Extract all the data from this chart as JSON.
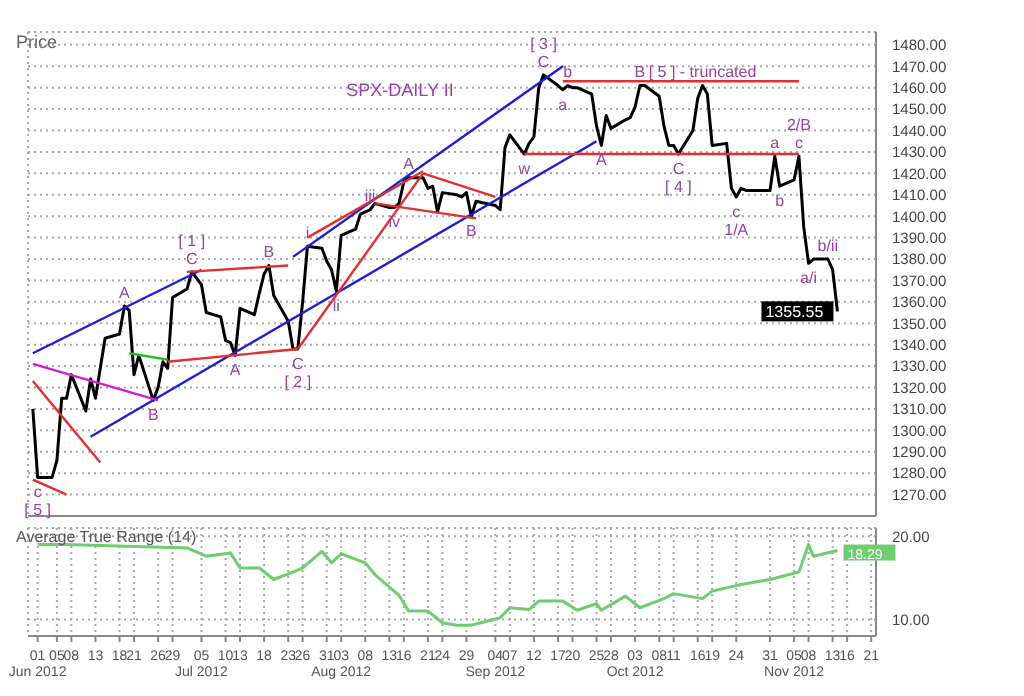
{
  "chart_data": [
    {
      "type": "line",
      "title": "SPX-DAILY II",
      "ylabel": "Price",
      "grid": true,
      "tick_labels": "y",
      "xlim": [
        "2012-05-30",
        "2012-11-22"
      ],
      "ylim": [
        1260,
        1486
      ],
      "xticks": [
        "2012-06-01",
        "2012-06-05",
        "2012-06-08",
        "2012-06-13",
        "2012-06-18",
        "2012-06-21",
        "2012-06-26",
        "2012-06-29",
        "2012-07-05",
        "2012-07-10",
        "2012-07-13",
        "2012-07-18",
        "2012-07-23",
        "2012-07-26",
        "2012-07-31",
        "2012-08-03",
        "2012-08-08",
        "2012-08-13",
        "2012-08-16",
        "2012-08-21",
        "2012-08-24",
        "2012-08-29",
        "2012-09-04",
        "2012-09-07",
        "2012-09-12",
        "2012-09-17",
        "2012-09-20",
        "2012-09-25",
        "2012-09-28",
        "2012-10-03",
        "2012-10-08",
        "2012-10-11",
        "2012-10-16",
        "2012-10-19",
        "2012-10-24",
        "2012-10-31",
        "2012-11-05",
        "2012-11-08",
        "2012-11-13",
        "2012-11-16",
        "2012-11-21"
      ],
      "yticks": [
        {
          "value": 1270,
          "label": "1270.00"
        },
        {
          "value": 1280,
          "label": "1280.00"
        },
        {
          "value": 1290,
          "label": "1290.00"
        },
        {
          "value": 1300,
          "label": "1300.00"
        },
        {
          "value": 1310,
          "label": "1310.00"
        },
        {
          "value": 1320,
          "label": "1320.00"
        },
        {
          "value": 1330,
          "label": "1330.00"
        },
        {
          "value": 1340,
          "label": "1340.00"
        },
        {
          "value": 1350,
          "label": "1350.00"
        },
        {
          "value": 1360,
          "label": "1360.00"
        },
        {
          "value": 1370,
          "label": "1370.00"
        },
        {
          "value": 1380,
          "label": "1380.00"
        },
        {
          "value": 1390,
          "label": "1390.00"
        },
        {
          "value": 1400,
          "label": "1400.00"
        },
        {
          "value": 1410,
          "label": "1410.00"
        },
        {
          "value": 1420,
          "label": "1420.00"
        },
        {
          "value": 1430,
          "label": "1430.00"
        },
        {
          "value": 1440,
          "label": "1440.00"
        },
        {
          "value": 1450,
          "label": "1450.00"
        },
        {
          "value": 1460,
          "label": "1460.00"
        },
        {
          "value": 1470,
          "label": "1470.00"
        },
        {
          "value": 1480,
          "label": "1480.00"
        }
      ],
      "series": [
        {
          "color": "#000000",
          "x": [
            "2012-05-31",
            "2012-06-01",
            "2012-06-04",
            "2012-06-05",
            "2012-06-06",
            "2012-06-07",
            "2012-06-08",
            "2012-06-11",
            "2012-06-12",
            "2012-06-13",
            "2012-06-14",
            "2012-06-15",
            "2012-06-18",
            "2012-06-19",
            "2012-06-20",
            "2012-06-21",
            "2012-06-22",
            "2012-06-25",
            "2012-06-26",
            "2012-06-27",
            "2012-06-28",
            "2012-06-29",
            "2012-07-02",
            "2012-07-03",
            "2012-07-05",
            "2012-07-06",
            "2012-07-09",
            "2012-07-10",
            "2012-07-11",
            "2012-07-12",
            "2012-07-13",
            "2012-07-16",
            "2012-07-17",
            "2012-07-18",
            "2012-07-19",
            "2012-07-20",
            "2012-07-23",
            "2012-07-24",
            "2012-07-25",
            "2012-07-26",
            "2012-07-27",
            "2012-07-30",
            "2012-07-31",
            "2012-08-01",
            "2012-08-02",
            "2012-08-03",
            "2012-08-06",
            "2012-08-07",
            "2012-08-08",
            "2012-08-09",
            "2012-08-10",
            "2012-08-13",
            "2012-08-14",
            "2012-08-15",
            "2012-08-16",
            "2012-08-17",
            "2012-08-20",
            "2012-08-21",
            "2012-08-22",
            "2012-08-23",
            "2012-08-24",
            "2012-08-27",
            "2012-08-28",
            "2012-08-29",
            "2012-08-30",
            "2012-08-31",
            "2012-09-04",
            "2012-09-05",
            "2012-09-06",
            "2012-09-07",
            "2012-09-10",
            "2012-09-11",
            "2012-09-12",
            "2012-09-13",
            "2012-09-14",
            "2012-09-17",
            "2012-09-18",
            "2012-09-19",
            "2012-09-20",
            "2012-09-21",
            "2012-09-24",
            "2012-09-25",
            "2012-09-26",
            "2012-09-27",
            "2012-09-28",
            "2012-10-01",
            "2012-10-02",
            "2012-10-03",
            "2012-10-04",
            "2012-10-05",
            "2012-10-08",
            "2012-10-09",
            "2012-10-10",
            "2012-10-11",
            "2012-10-12",
            "2012-10-15",
            "2012-10-16",
            "2012-10-17",
            "2012-10-18",
            "2012-10-19",
            "2012-10-22",
            "2012-10-23",
            "2012-10-24",
            "2012-10-25",
            "2012-10-26",
            "2012-10-31",
            "2012-11-01",
            "2012-11-02",
            "2012-11-05",
            "2012-11-06",
            "2012-11-07",
            "2012-11-08",
            "2012-11-09",
            "2012-11-12",
            "2012-11-13",
            "2012-11-14"
          ],
          "values": [
            1310,
            1278,
            1278,
            1286,
            1315,
            1315,
            1326,
            1309,
            1324,
            1315,
            1329,
            1343,
            1345,
            1358,
            1356,
            1326,
            1335,
            1314,
            1320,
            1332,
            1329,
            1362,
            1366,
            1374,
            1368,
            1355,
            1353,
            1342,
            1341,
            1335,
            1357,
            1354,
            1364,
            1373,
            1377,
            1363,
            1351,
            1338,
            1338,
            1360,
            1386,
            1385,
            1379,
            1375,
            1365,
            1391,
            1394,
            1401,
            1402,
            1403,
            1406,
            1404,
            1404,
            1406,
            1416,
            1418,
            1418,
            1413,
            1414,
            1402,
            1411,
            1410,
            1409,
            1411,
            1400,
            1407,
            1405,
            1403,
            1432,
            1438,
            1429,
            1434,
            1437,
            1460,
            1466,
            1461,
            1459,
            1461,
            1460,
            1460,
            1457,
            1442,
            1433,
            1447,
            1441,
            1445,
            1446,
            1451,
            1461,
            1461,
            1456,
            1442,
            1433,
            1433,
            1429,
            1440,
            1455,
            1461,
            1457,
            1433,
            1434,
            1413,
            1409,
            1413,
            1412,
            1412,
            1428,
            1414,
            1417,
            1428,
            1395,
            1378,
            1380,
            1380,
            1375,
            1355.55
          ],
          "value_labels": [
            null,
            null,
            null,
            null,
            null,
            null,
            null,
            null,
            null,
            null,
            null,
            null,
            null,
            null,
            null,
            null,
            null,
            null,
            null,
            null,
            null,
            null,
            null,
            null,
            null,
            null,
            null,
            null,
            null,
            null,
            null,
            null,
            null,
            null,
            null,
            null,
            null,
            null,
            null,
            null,
            null,
            null,
            null,
            null,
            null,
            null,
            null,
            null,
            null,
            null,
            null,
            null,
            null,
            null,
            null,
            null,
            null,
            null,
            null,
            null,
            null,
            null,
            null,
            null,
            null,
            null,
            null,
            null,
            null,
            null,
            null,
            null,
            null,
            null,
            null,
            null,
            null,
            null,
            null,
            null,
            null,
            null,
            null,
            null,
            null,
            null,
            null,
            null,
            null,
            null,
            null,
            null,
            null,
            null,
            null,
            null,
            null,
            null,
            null,
            null,
            null,
            null,
            null,
            null,
            null,
            null,
            null,
            null,
            null,
            null,
            null,
            null,
            null,
            null,
            null,
            "1355.55"
          ]
        },
        {
          "color": "#1f1fd0",
          "x": [
            "2012-06-12",
            "2012-09-25"
          ],
          "values": [
            1297,
            1435
          ]
        },
        {
          "color": "#1f1fd0",
          "x": [
            "2012-05-31",
            "2012-07-05"
          ],
          "values": [
            1336,
            1375
          ]
        },
        {
          "color": "#1f1fd0",
          "x": [
            "2012-07-24",
            "2012-09-18"
          ],
          "values": [
            1381,
            1470
          ]
        },
        {
          "color": "#e03030",
          "x": [
            "2012-06-28",
            "2012-07-25"
          ],
          "values": [
            1332,
            1338
          ]
        },
        {
          "color": "#e03030",
          "x": [
            "2012-07-02",
            "2012-07-23"
          ],
          "values": [
            1374,
            1377
          ]
        },
        {
          "color": "#d020d0",
          "x": [
            "2012-05-31",
            "2012-06-26"
          ],
          "values": [
            1331,
            1314
          ]
        },
        {
          "color": "#20c020",
          "x": [
            "2012-06-20",
            "2012-06-28"
          ],
          "values": [
            1336,
            1333
          ]
        },
        {
          "color": "#e03030",
          "x": [
            "2012-07-25",
            "2012-08-20"
          ],
          "values": [
            1338,
            1420
          ]
        },
        {
          "color": "#e03030",
          "x": [
            "2012-07-27",
            "2012-08-20"
          ],
          "values": [
            1390,
            1421
          ]
        },
        {
          "color": "#e03030",
          "x": [
            "2012-08-20",
            "2012-09-04"
          ],
          "values": [
            1420,
            1409
          ]
        },
        {
          "color": "#e03030",
          "x": [
            "2012-08-10",
            "2012-08-31"
          ],
          "values": [
            1406,
            1399
          ]
        },
        {
          "color": "#e03030",
          "x": [
            "2012-05-31",
            "2012-06-14"
          ],
          "values": [
            1323,
            1285
          ]
        },
        {
          "color": "#e03030",
          "x": [
            "2012-05-31",
            "2012-06-07"
          ],
          "values": [
            1277,
            1270
          ]
        },
        {
          "color": "#e03030",
          "x": [
            "2012-09-18",
            "2012-11-06"
          ],
          "values": [
            1463,
            1463
          ]
        },
        {
          "color": "#e03030",
          "x": [
            "2012-09-10",
            "2012-11-06"
          ],
          "values": [
            1429,
            1429
          ]
        }
      ],
      "annotations": [
        {
          "text": "C",
          "x": "2012-07-03",
          "y": 1374
        },
        {
          "text": "[ 1 ]",
          "x": "2012-07-03",
          "y": 1374
        },
        {
          "text": "B",
          "x": "2012-07-19",
          "y": 1377
        },
        {
          "text": "A",
          "x": "2012-06-19",
          "y": 1358
        },
        {
          "text": "B",
          "x": "2012-06-25",
          "y": 1314
        },
        {
          "text": "A",
          "x": "2012-07-12",
          "y": 1335
        },
        {
          "text": "C",
          "x": "2012-07-25",
          "y": 1338
        },
        {
          "text": "[ 2 ]",
          "x": "2012-07-25",
          "y": 1338
        },
        {
          "text": "A",
          "x": "2012-08-17",
          "y": 1418
        },
        {
          "text": "B",
          "x": "2012-08-30",
          "y": 1400
        },
        {
          "text": "c",
          "x": "2012-06-01",
          "y": 1278
        },
        {
          "text": "[ 5 ]",
          "x": "2012-06-01",
          "y": 1278
        },
        {
          "text": "i",
          "x": "2012-07-27",
          "y": 1386
        },
        {
          "text": "ii",
          "x": "2012-08-02",
          "y": 1365
        },
        {
          "text": "iii",
          "x": "2012-08-09",
          "y": 1403
        },
        {
          "text": "iv",
          "x": "2012-08-14",
          "y": 1404
        },
        {
          "text": "C",
          "x": "2012-09-14",
          "y": 1466
        },
        {
          "text": "[ 3 ]",
          "x": "2012-09-14",
          "y": 1466
        },
        {
          "text": "a",
          "x": "2012-09-18",
          "y": 1459
        },
        {
          "text": "b",
          "x": "2012-09-19",
          "y": 1461
        },
        {
          "text": "w",
          "x": "2012-09-10",
          "y": 1429
        },
        {
          "text": "A",
          "x": "2012-09-26",
          "y": 1433
        },
        {
          "text": "B",
          "x": "2012-10-04",
          "y": 1461
        },
        {
          "text": "C",
          "x": "2012-10-12",
          "y": 1429
        },
        {
          "text": "[ 4 ]",
          "x": "2012-10-12",
          "y": 1429
        },
        {
          "text": "[ 5 ]  - truncated",
          "x": "2012-10-17",
          "y": 1461
        },
        {
          "text": "c",
          "x": "2012-10-24",
          "y": 1409
        },
        {
          "text": "1/A",
          "x": "2012-10-24",
          "y": 1409
        },
        {
          "text": "a",
          "x": "2012-11-01",
          "y": 1428
        },
        {
          "text": "b",
          "x": "2012-11-02",
          "y": 1414
        },
        {
          "text": "c",
          "x": "2012-11-06",
          "y": 1428
        },
        {
          "text": "2/B",
          "x": "2012-11-06",
          "y": 1428
        },
        {
          "text": "a/i",
          "x": "2012-11-08",
          "y": 1378
        },
        {
          "text": "b/ii",
          "x": "2012-11-12",
          "y": 1380
        }
      ]
    },
    {
      "type": "line",
      "title": "Average True Range (14)",
      "grid": true,
      "xlim": [
        "2012-05-30",
        "2012-11-22"
      ],
      "ylim": [
        8,
        21
      ],
      "xticks": [
        {
          "value": "2012-06-01",
          "label": "01\nJun 2012"
        },
        {
          "value": "2012-06-05",
          "label": "05"
        },
        {
          "value": "2012-06-08",
          "label": "08"
        },
        {
          "value": "2012-06-13",
          "label": "13"
        },
        {
          "value": "2012-06-18",
          "label": "18"
        },
        {
          "value": "2012-06-21",
          "label": "21"
        },
        {
          "value": "2012-06-26",
          "label": "26"
        },
        {
          "value": "2012-06-29",
          "label": "29"
        },
        {
          "value": "2012-07-05",
          "label": "05\nJul 2012"
        },
        {
          "value": "2012-07-10",
          "label": "10"
        },
        {
          "value": "2012-07-13",
          "label": "13"
        },
        {
          "value": "2012-07-18",
          "label": "18"
        },
        {
          "value": "2012-07-23",
          "label": "23"
        },
        {
          "value": "2012-07-26",
          "label": "26"
        },
        {
          "value": "2012-07-31",
          "label": "31"
        },
        {
          "value": "2012-08-03",
          "label": "03\nAug 2012"
        },
        {
          "value": "2012-08-08",
          "label": "08"
        },
        {
          "value": "2012-08-13",
          "label": "13"
        },
        {
          "value": "2012-08-16",
          "label": "16"
        },
        {
          "value": "2012-08-21",
          "label": "21"
        },
        {
          "value": "2012-08-24",
          "label": "24"
        },
        {
          "value": "2012-08-29",
          "label": "29"
        },
        {
          "value": "2012-09-04",
          "label": "04\nSep 2012"
        },
        {
          "value": "2012-09-07",
          "label": "07"
        },
        {
          "value": "2012-09-12",
          "label": "12"
        },
        {
          "value": "2012-09-17",
          "label": "17"
        },
        {
          "value": "2012-09-20",
          "label": "20"
        },
        {
          "value": "2012-09-25",
          "label": "25"
        },
        {
          "value": "2012-09-28",
          "label": "28"
        },
        {
          "value": "2012-10-03",
          "label": "03\nOct 2012"
        },
        {
          "value": "2012-10-08",
          "label": "08"
        },
        {
          "value": "2012-10-11",
          "label": "11"
        },
        {
          "value": "2012-10-16",
          "label": "16"
        },
        {
          "value": "2012-10-19",
          "label": "19"
        },
        {
          "value": "2012-10-24",
          "label": "24"
        },
        {
          "value": "2012-10-31",
          "label": "31"
        },
        {
          "value": "2012-11-05",
          "label": "05\nNov 2012"
        },
        {
          "value": "2012-11-08",
          "label": "08"
        },
        {
          "value": "2012-11-13",
          "label": "13"
        },
        {
          "value": "2012-11-16",
          "label": "16"
        },
        {
          "value": "2012-11-21",
          "label": "21"
        }
      ],
      "yticks": [
        {
          "value": 10,
          "label": "10.00"
        },
        {
          "value": 20,
          "label": "20.00"
        }
      ],
      "series": [
        {
          "color": "#70cc70",
          "x": [
            "2012-06-01",
            "2012-06-07",
            "2012-07-02",
            "2012-07-06",
            "2012-07-11",
            "2012-07-13",
            "2012-07-17",
            "2012-07-20",
            "2012-07-24",
            "2012-07-26",
            "2012-07-30",
            "2012-08-01",
            "2012-08-03",
            "2012-08-08",
            "2012-08-10",
            "2012-08-15",
            "2012-08-17",
            "2012-08-21",
            "2012-08-24",
            "2012-08-27",
            "2012-08-30",
            "2012-09-05",
            "2012-09-07",
            "2012-09-11",
            "2012-09-13",
            "2012-09-18",
            "2012-09-21",
            "2012-09-25",
            "2012-09-26",
            "2012-10-01",
            "2012-10-04",
            "2012-10-09",
            "2012-10-11",
            "2012-10-17",
            "2012-10-19",
            "2012-10-25",
            "2012-10-31",
            "2012-11-06",
            "2012-11-08",
            "2012-11-09",
            "2012-11-14"
          ],
          "values": [
            19.0,
            19.0,
            18.6,
            17.6,
            18.0,
            16.2,
            16.2,
            14.8,
            15.7,
            16.2,
            18.2,
            16.8,
            17.9,
            16.8,
            15.4,
            12.9,
            11.0,
            11.0,
            9.6,
            9.3,
            9.3,
            10.2,
            11.4,
            11.2,
            12.2,
            12.2,
            11.1,
            11.9,
            11.1,
            12.8,
            11.4,
            12.5,
            13.1,
            12.5,
            13.4,
            14.2,
            14.8,
            15.7,
            19.0,
            17.6,
            18.29
          ],
          "value_labels": [
            null,
            null,
            null,
            null,
            null,
            null,
            null,
            null,
            null,
            null,
            null,
            null,
            null,
            null,
            null,
            null,
            null,
            null,
            null,
            null,
            null,
            null,
            null,
            null,
            null,
            null,
            null,
            null,
            null,
            null,
            null,
            null,
            null,
            null,
            null,
            null,
            null,
            null,
            null,
            null,
            "18.29"
          ]
        }
      ]
    }
  ]
}
